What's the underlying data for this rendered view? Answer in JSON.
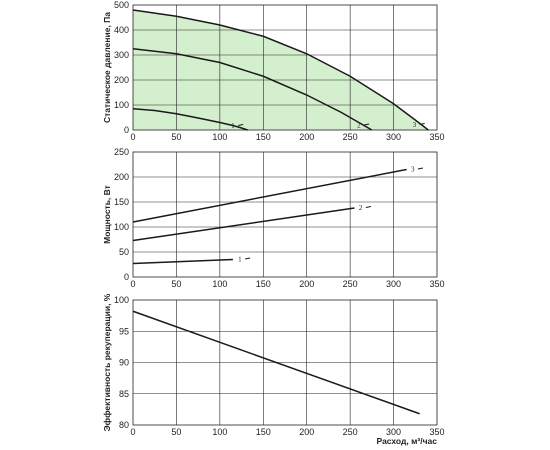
{
  "chart_data": [
    {
      "type": "line",
      "ylabel": "Статическое давление, Па",
      "xlim": [
        0,
        350
      ],
      "ylim": [
        0,
        500
      ],
      "xticks": [
        "0",
        "50",
        "100",
        "150",
        "200",
        "250",
        "300",
        "350"
      ],
      "yticks": [
        "0",
        "100",
        "200",
        "300",
        "400",
        "500"
      ],
      "grid": true,
      "shaded_area_color": "#d4efcd",
      "series": [
        {
          "name": "1",
          "x": [
            0,
            25,
            50,
            75,
            100,
            115,
            125,
            132
          ],
          "y": [
            85,
            78,
            65,
            48,
            30,
            18,
            8,
            0
          ]
        },
        {
          "name": "2",
          "x": [
            0,
            50,
            100,
            150,
            200,
            240,
            260,
            275
          ],
          "y": [
            325,
            305,
            270,
            215,
            140,
            70,
            30,
            0
          ]
        },
        {
          "name": "3",
          "x": [
            0,
            50,
            100,
            150,
            200,
            250,
            300,
            325,
            340
          ],
          "y": [
            480,
            455,
            420,
            375,
            305,
            215,
            105,
            40,
            0
          ]
        }
      ],
      "line_labels": [
        {
          "text": "1",
          "x": 113,
          "y": 18
        },
        {
          "text": "2",
          "x": 258,
          "y": 20
        },
        {
          "text": "3",
          "x": 322,
          "y": 22
        }
      ]
    },
    {
      "type": "line",
      "ylabel": "Мощность, Вт",
      "xlim": [
        0,
        350
      ],
      "ylim": [
        0,
        250
      ],
      "xticks": [
        "0",
        "50",
        "100",
        "150",
        "200",
        "250",
        "300",
        "350"
      ],
      "yticks": [
        "0",
        "50",
        "100",
        "150",
        "200",
        "250"
      ],
      "grid": true,
      "series": [
        {
          "name": "1",
          "x": [
            0,
            115
          ],
          "y": [
            27,
            35
          ]
        },
        {
          "name": "2",
          "x": [
            0,
            255
          ],
          "y": [
            73,
            138
          ]
        },
        {
          "name": "3",
          "x": [
            0,
            315
          ],
          "y": [
            110,
            215
          ]
        }
      ],
      "line_labels": [
        {
          "text": "1",
          "x": 121,
          "y": 36
        },
        {
          "text": "2",
          "x": 260,
          "y": 139
        },
        {
          "text": "3",
          "x": 320,
          "y": 216
        }
      ]
    },
    {
      "type": "line",
      "ylabel": "Эффективность рекуперации, %",
      "xlabel": "Расход, м³/час",
      "xlim": [
        0,
        350
      ],
      "ylim": [
        80,
        100
      ],
      "xticks": [
        "0",
        "50",
        "100",
        "150",
        "200",
        "250",
        "300",
        "350"
      ],
      "yticks": [
        "80",
        "85",
        "90",
        "95",
        "100"
      ],
      "grid": true,
      "series": [
        {
          "name": "",
          "x": [
            0,
            330
          ],
          "y": [
            98.2,
            81.8
          ]
        }
      ]
    }
  ]
}
